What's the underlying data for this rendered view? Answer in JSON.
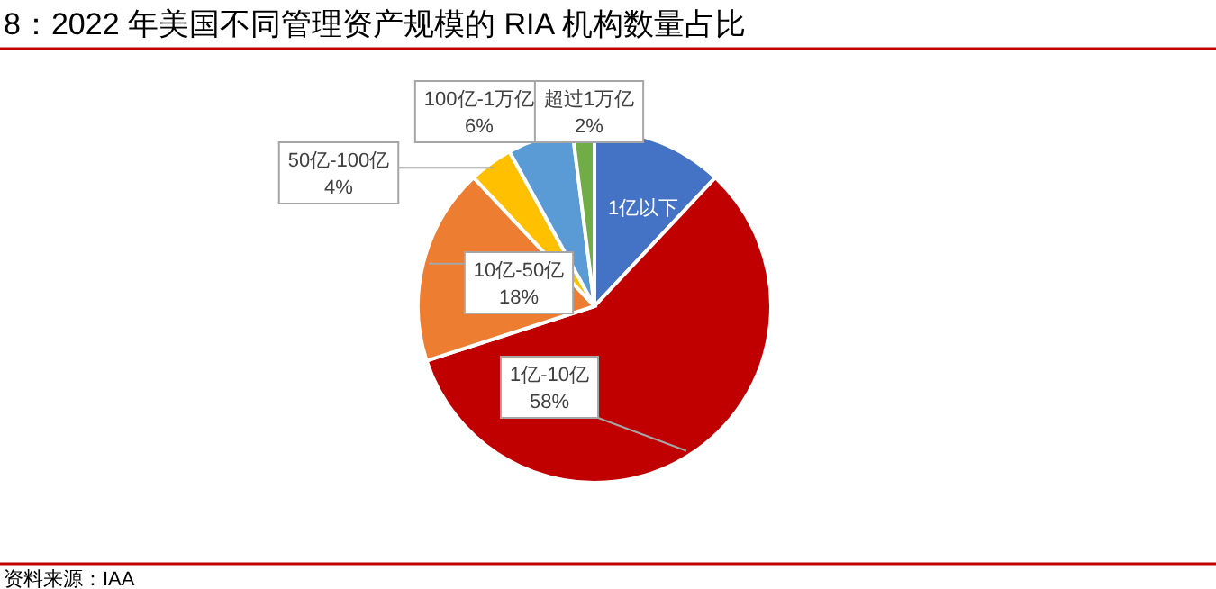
{
  "chart_data": {
    "type": "pie",
    "title": "8：2022 年美国不同管理资产规模的 RIA 机构数量占比",
    "categories": [
      "1亿以下",
      "1亿-10亿",
      "10亿-50亿",
      "50亿-100亿",
      "100亿-1万亿",
      "超过1万亿"
    ],
    "values": [
      12,
      58,
      18,
      4,
      6,
      2
    ],
    "value_labels": [
      null,
      "58%",
      "18%",
      "4%",
      "6%",
      "2%"
    ],
    "colors": [
      "#4472c4",
      "#c00000",
      "#ed7d31",
      "#ffc000",
      "#5b9bd5",
      "#70ad47"
    ],
    "annotations": [
      "资料来源：IAA"
    ]
  }
}
